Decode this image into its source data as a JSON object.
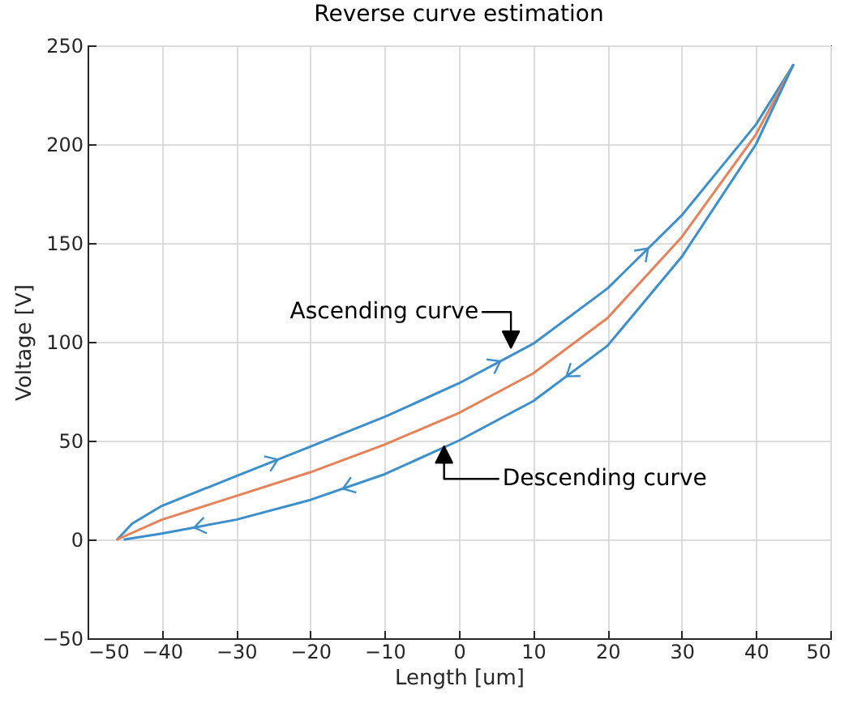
{
  "chart_data": {
    "type": "line",
    "title": "Reverse curve estimation",
    "xlabel": "Length [um]",
    "ylabel": "Voltage [V]",
    "xlim": [
      -50,
      50
    ],
    "xticks": [
      -50,
      -40,
      -30,
      -20,
      -10,
      0,
      10,
      20,
      30,
      40,
      50
    ],
    "ylim": [
      -50,
      250
    ],
    "yticks": [
      -50,
      0,
      50,
      100,
      150,
      200,
      250
    ],
    "grid": true,
    "series": [
      {
        "color": "#3d8fcb",
        "x": [
          -46,
          -44,
          -40,
          -30,
          -20,
          -10,
          0,
          10,
          20,
          30,
          40,
          45
        ],
        "values": [
          0,
          8,
          17,
          32,
          47,
          62,
          79,
          99,
          127,
          164,
          210,
          240
        ]
      },
      {
        "color": "#e5825a",
        "x": [
          -46,
          -40,
          -30,
          -20,
          -10,
          0,
          10,
          20,
          30,
          40,
          45
        ],
        "values": [
          0,
          10,
          22,
          34,
          48,
          64,
          84,
          112,
          153,
          205,
          240
        ]
      },
      {
        "color": "#3d8fcb",
        "x": [
          45,
          40,
          30,
          20,
          10,
          0,
          -10,
          -20,
          -30,
          -40,
          -45
        ],
        "values": [
          240,
          200,
          143,
          98,
          70,
          50,
          33,
          20,
          10,
          3,
          0
        ]
      }
    ],
    "annotations": [
      {
        "text": "Ascending curve",
        "x": 7,
        "y": 97
      },
      {
        "text": "Descending curve",
        "x": -2,
        "y": 47
      }
    ]
  }
}
